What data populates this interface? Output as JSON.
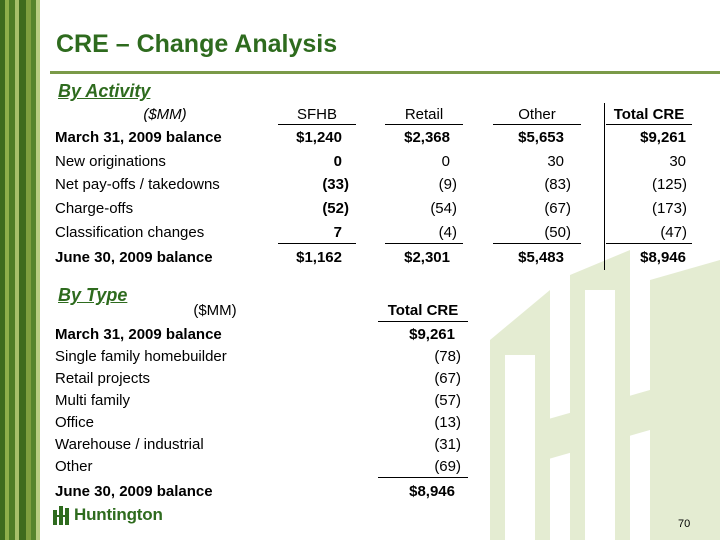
{
  "title": "CRE – Change Analysis",
  "colors": {
    "title": "#2e6b1e",
    "rule": "#7a9a48",
    "stripe_dark": "#3f6b1d",
    "stripe_light": "#8fae4a",
    "watermark": "#e4ecd2"
  },
  "by_activity": {
    "heading": "By Activity",
    "columns": [
      "($MM)",
      "SFHB",
      "Retail",
      "Other",
      "Total CRE"
    ],
    "rows": [
      {
        "label": "March 31, 2009 balance",
        "values": [
          "$1,240",
          "$2,368",
          "$5,653",
          "$9,261"
        ],
        "bold": true
      },
      {
        "label": "New originations",
        "values": [
          "0",
          "0",
          "30",
          "30"
        ],
        "bold": false
      },
      {
        "label": "Net pay-offs / takedowns",
        "values": [
          "(33)",
          "(9)",
          "(83)",
          "(125)"
        ],
        "bold": false
      },
      {
        "label": "Charge-offs",
        "values": [
          "(52)",
          "(54)",
          "(67)",
          "(173)"
        ],
        "bold": false
      },
      {
        "label": "Classification changes",
        "values": [
          "7",
          "(4)",
          "(50)",
          "(47)"
        ],
        "bold": false
      },
      {
        "label": "June 30, 2009 balance",
        "values": [
          "$1,162",
          "$2,301",
          "$5,483",
          "$8,946"
        ],
        "bold": true
      }
    ]
  },
  "by_type": {
    "heading": "By Type",
    "columns": [
      "($MM)",
      "Total CRE"
    ],
    "rows": [
      {
        "label": "March 31, 2009 balance",
        "value": "$9,261",
        "bold": true
      },
      {
        "label": "Single family homebuilder",
        "value": "(78)",
        "bold": false
      },
      {
        "label": "Retail projects",
        "value": "(67)",
        "bold": false
      },
      {
        "label": "Multi family",
        "value": "(57)",
        "bold": false
      },
      {
        "label": "Office",
        "value": "(13)",
        "bold": false
      },
      {
        "label": "Warehouse / industrial",
        "value": "(31)",
        "bold": false
      },
      {
        "label": "Other",
        "value": "(69)",
        "bold": false
      },
      {
        "label": "June 30, 2009 balance",
        "value": "$8,946",
        "bold": true
      }
    ]
  },
  "footer": {
    "logo_text": "Huntington",
    "page_number": "70"
  }
}
